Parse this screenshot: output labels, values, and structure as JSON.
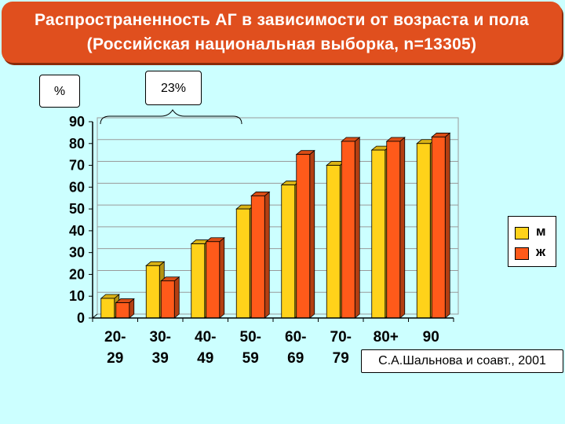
{
  "title": {
    "line1": "Распространенность АГ в зависимости от возраста и пола",
    "line2": "(Российская национальная выборка, n=13305)"
  },
  "unit_label": "%",
  "bracket_label": "23%",
  "citation": "С.А.Шальнова и соавт., 2001",
  "colors": {
    "background": "#ccffff",
    "banner": "#e04f1e",
    "men": "#ffd21a",
    "women": "#ff5a1a"
  },
  "chart_data": {
    "type": "bar",
    "title": "Распространенность АГ в зависимости от возраста и пола",
    "categories": [
      [
        "20-",
        "29"
      ],
      [
        "30-",
        "39"
      ],
      [
        "40-",
        "49"
      ],
      [
        "50-",
        "59"
      ],
      [
        "60-",
        "69"
      ],
      [
        "70-",
        "79"
      ],
      [
        "80+",
        ""
      ],
      [
        "90",
        ""
      ]
    ],
    "series": [
      {
        "name": "м",
        "color": "#ffd21a",
        "values": [
          9,
          24,
          34,
          50,
          61,
          70,
          77,
          80
        ]
      },
      {
        "name": "ж",
        "color": "#ff5a1a",
        "values": [
          7,
          17,
          35,
          56,
          75,
          81,
          81,
          83
        ]
      }
    ],
    "ylim": [
      0,
      90
    ],
    "yticks": [
      0,
      10,
      20,
      30,
      40,
      50,
      60,
      70,
      80,
      90
    ],
    "grid": true,
    "legend_position": "right",
    "bar_style": "3d"
  }
}
